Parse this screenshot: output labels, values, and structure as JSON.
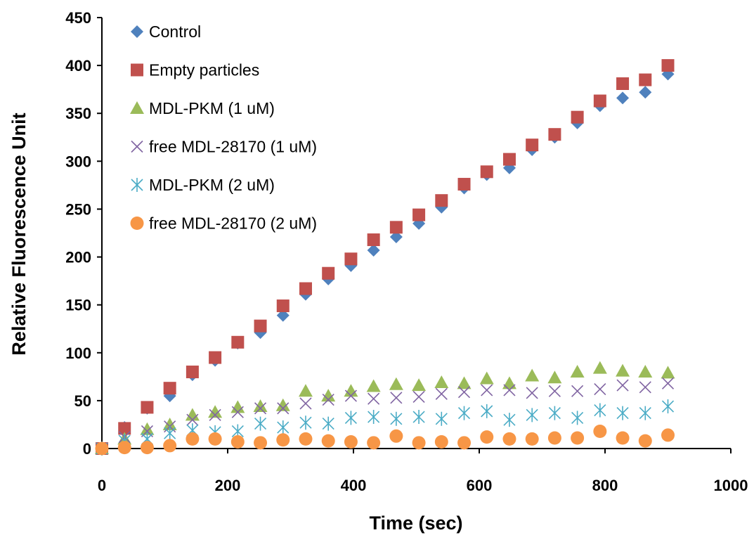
{
  "chart_data": {
    "type": "scatter",
    "title": "",
    "xlabel": "Time (sec)",
    "ylabel": "Relative Fluorescence Unit",
    "xlim": [
      0,
      1000
    ],
    "ylim": [
      0,
      450
    ],
    "xticks": [
      0,
      200,
      400,
      600,
      800,
      1000
    ],
    "yticks": [
      0,
      50,
      100,
      150,
      200,
      250,
      300,
      350,
      400,
      450
    ],
    "grid": false,
    "legend_position": "top-left",
    "x": [
      0,
      36,
      72,
      108,
      144,
      180,
      216,
      252,
      288,
      324,
      360,
      396,
      432,
      468,
      504,
      540,
      576,
      612,
      648,
      684,
      720,
      756,
      792,
      828,
      864,
      900
    ],
    "series": [
      {
        "name": "Control",
        "marker": "diamond",
        "color": "#4F81BD",
        "values": [
          0,
          22,
          42,
          55,
          77,
          92,
          110,
          121,
          139,
          161,
          177,
          191,
          207,
          221,
          235,
          252,
          272,
          286,
          293,
          312,
          325,
          340,
          358,
          366,
          372,
          391
        ]
      },
      {
        "name": "Empty particles",
        "marker": "square",
        "color": "#C0504D",
        "values": [
          0,
          21,
          43,
          63,
          80,
          95,
          111,
          128,
          149,
          167,
          183,
          198,
          218,
          231,
          244,
          259,
          276,
          289,
          302,
          317,
          328,
          346,
          363,
          381,
          385,
          400
        ]
      },
      {
        "name": "MDL-PKM (1 uM)",
        "marker": "triangle",
        "color": "#9BBB59",
        "values": [
          0,
          10,
          20,
          25,
          35,
          38,
          43,
          44,
          45,
          60,
          55,
          60,
          65,
          67,
          66,
          69,
          68,
          73,
          68,
          76,
          74,
          80,
          84,
          81,
          80,
          79
        ]
      },
      {
        "name": "free MDL-28170 (1 uM)",
        "marker": "x",
        "color": "#8064A2",
        "values": [
          0,
          12,
          18,
          23,
          30,
          35,
          38,
          42,
          42,
          47,
          51,
          55,
          52,
          53,
          54,
          57,
          59,
          61,
          61,
          58,
          60,
          60,
          62,
          66,
          64,
          68
        ]
      },
      {
        "name": "MDL-PKM (2 uM)",
        "marker": "star",
        "color": "#4BACC6",
        "values": [
          0,
          8,
          10,
          16,
          19,
          17,
          18,
          26,
          22,
          27,
          26,
          32,
          33,
          31,
          33,
          31,
          37,
          39,
          30,
          35,
          37,
          32,
          40,
          37,
          37,
          44
        ]
      },
      {
        "name": "free MDL-28170 (2 uM)",
        "marker": "circle",
        "color": "#F79646",
        "values": [
          0,
          1,
          1,
          3,
          10,
          10,
          7,
          6,
          9,
          10,
          8,
          7,
          6,
          13,
          6,
          7,
          6,
          12,
          10,
          10,
          11,
          11,
          18,
          11,
          8,
          14
        ]
      }
    ]
  }
}
